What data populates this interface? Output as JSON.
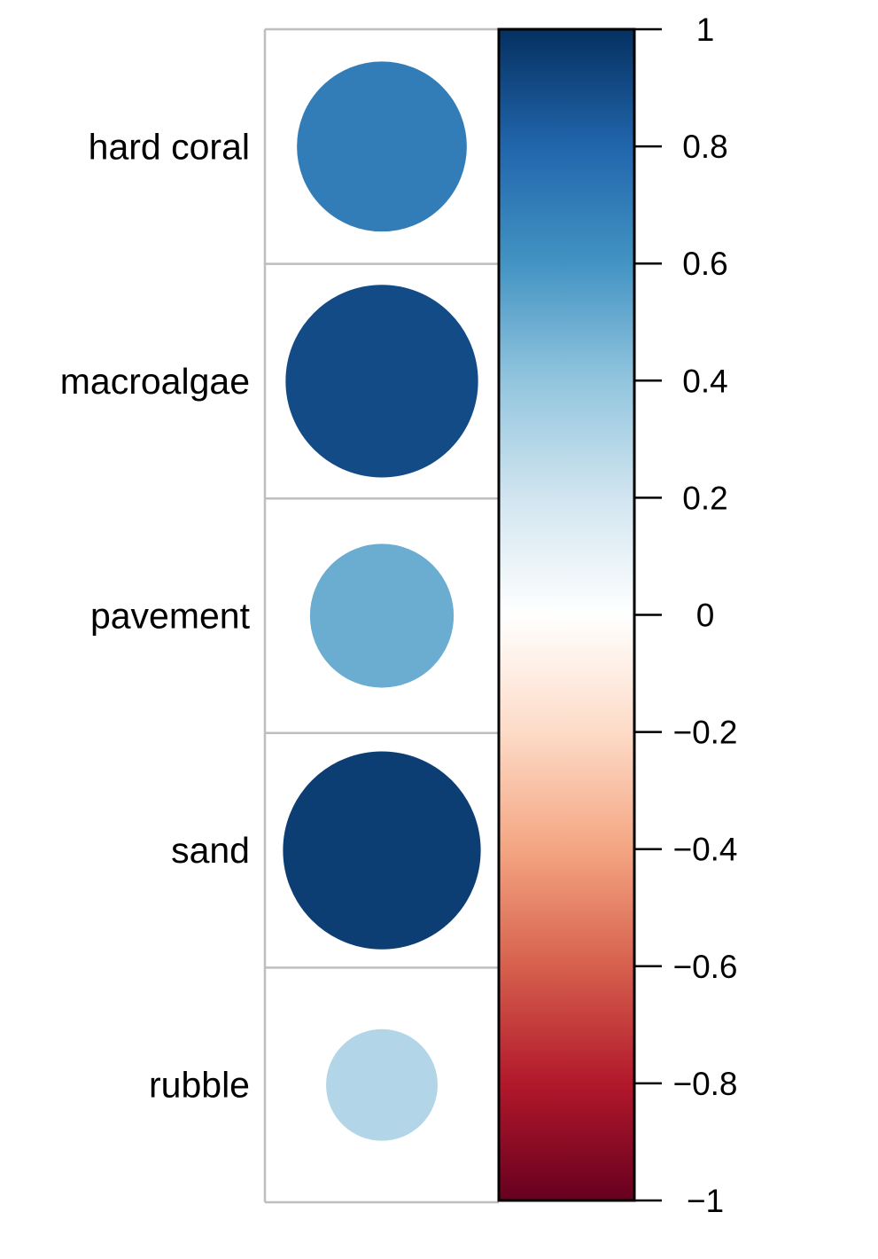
{
  "chart_data": {
    "type": "heatmap",
    "subtype": "correlation-circle-plot",
    "rows": [
      "hard coral",
      "macroalgae",
      "pavement",
      "sand",
      "rubble"
    ],
    "values": [
      0.7,
      0.9,
      0.5,
      0.95,
      0.3
    ],
    "colorbar": {
      "range": [
        -1,
        1
      ],
      "ticks": [
        1,
        0.8,
        0.6,
        0.4,
        0.2,
        0,
        -0.2,
        -0.4,
        -0.6,
        -0.8,
        -1
      ],
      "tick_labels": [
        "1",
        "0.8",
        "0.6",
        "0.4",
        "0.2",
        "0",
        "−0.2",
        "−0.4",
        "−0.6",
        "−0.8",
        "−1"
      ],
      "palette": [
        "#67001F",
        "#B2182B",
        "#D6604D",
        "#F4A582",
        "#FDDBC7",
        "#FFFFFF",
        "#D1E5F0",
        "#92C5DE",
        "#4393C3",
        "#2166AC",
        "#053061"
      ]
    },
    "grid": true,
    "grid_color": "#BEBEBE"
  }
}
